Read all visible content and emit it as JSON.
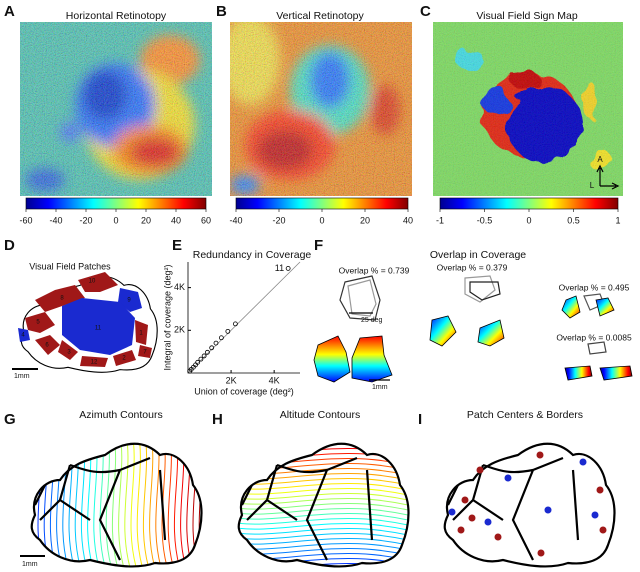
{
  "panels": [
    {
      "letter": "A",
      "title": "Horizontal Retinotopy",
      "colorbar": {
        "lim": [
          -60,
          60
        ],
        "ticks": [
          -60,
          -40,
          -20,
          0,
          20,
          40,
          60
        ]
      }
    },
    {
      "letter": "B",
      "title": "Vertical Retinotopy",
      "colorbar": {
        "lim": [
          -40,
          40
        ],
        "ticks": [
          -40,
          -20,
          0,
          20,
          40
        ]
      }
    },
    {
      "letter": "C",
      "title": "Visual Field Sign Map",
      "colorbar": {
        "lim": [
          -1,
          1
        ],
        "ticks": [
          -1,
          -0.5,
          0,
          0.5,
          1
        ]
      },
      "axis_labels": [
        "A",
        "L"
      ]
    },
    {
      "letter": "D",
      "title": "Visual Field Patches",
      "patch_labels": [
        "10",
        "8",
        "9",
        "5",
        "4",
        "11",
        "6",
        "3",
        "12",
        "2",
        "1",
        "7"
      ],
      "scale": "1mm"
    },
    {
      "letter": "F",
      "title": "Overlap in Coverage",
      "overlaps": [
        "Overlap % = 0.739",
        "Overlap % = 0.379",
        "Overlap % = 0.495",
        "Overlap % = 0.0085"
      ],
      "scale_deg": "25 deg",
      "scale": "1mm"
    },
    {
      "letter": "G",
      "title": "Azimuth Contours",
      "scale": "1mm"
    },
    {
      "letter": "H",
      "title": "Altitude Contours"
    },
    {
      "letter": "I",
      "title": "Patch Centers & Borders"
    }
  ],
  "chart_data": {
    "type": "scatter",
    "letter": "E",
    "title": "Redundancy in Coverage",
    "x_label": "Union of coverage (deg²)",
    "y_label": "Integral of coverage (deg²)",
    "x": [
      80,
      150,
      250,
      350,
      450,
      600,
      750,
      900,
      1100,
      1300,
      1550,
      1850,
      2200,
      4650
    ],
    "y": [
      90,
      170,
      270,
      380,
      500,
      650,
      800,
      970,
      1180,
      1400,
      1650,
      1950,
      2300,
      4900
    ],
    "point_labels": [
      null,
      null,
      null,
      null,
      null,
      null,
      null,
      null,
      null,
      null,
      null,
      null,
      null,
      "11"
    ],
    "xlim": [
      0,
      5200
    ],
    "ylim": [
      0,
      5200
    ],
    "xticks": [
      {
        "value": 2000,
        "label": "2K"
      },
      {
        "value": 4000,
        "label": "4K"
      }
    ],
    "yticks": [
      {
        "value": 2000,
        "label": "2K"
      },
      {
        "value": 4000,
        "label": "4K"
      }
    ]
  }
}
